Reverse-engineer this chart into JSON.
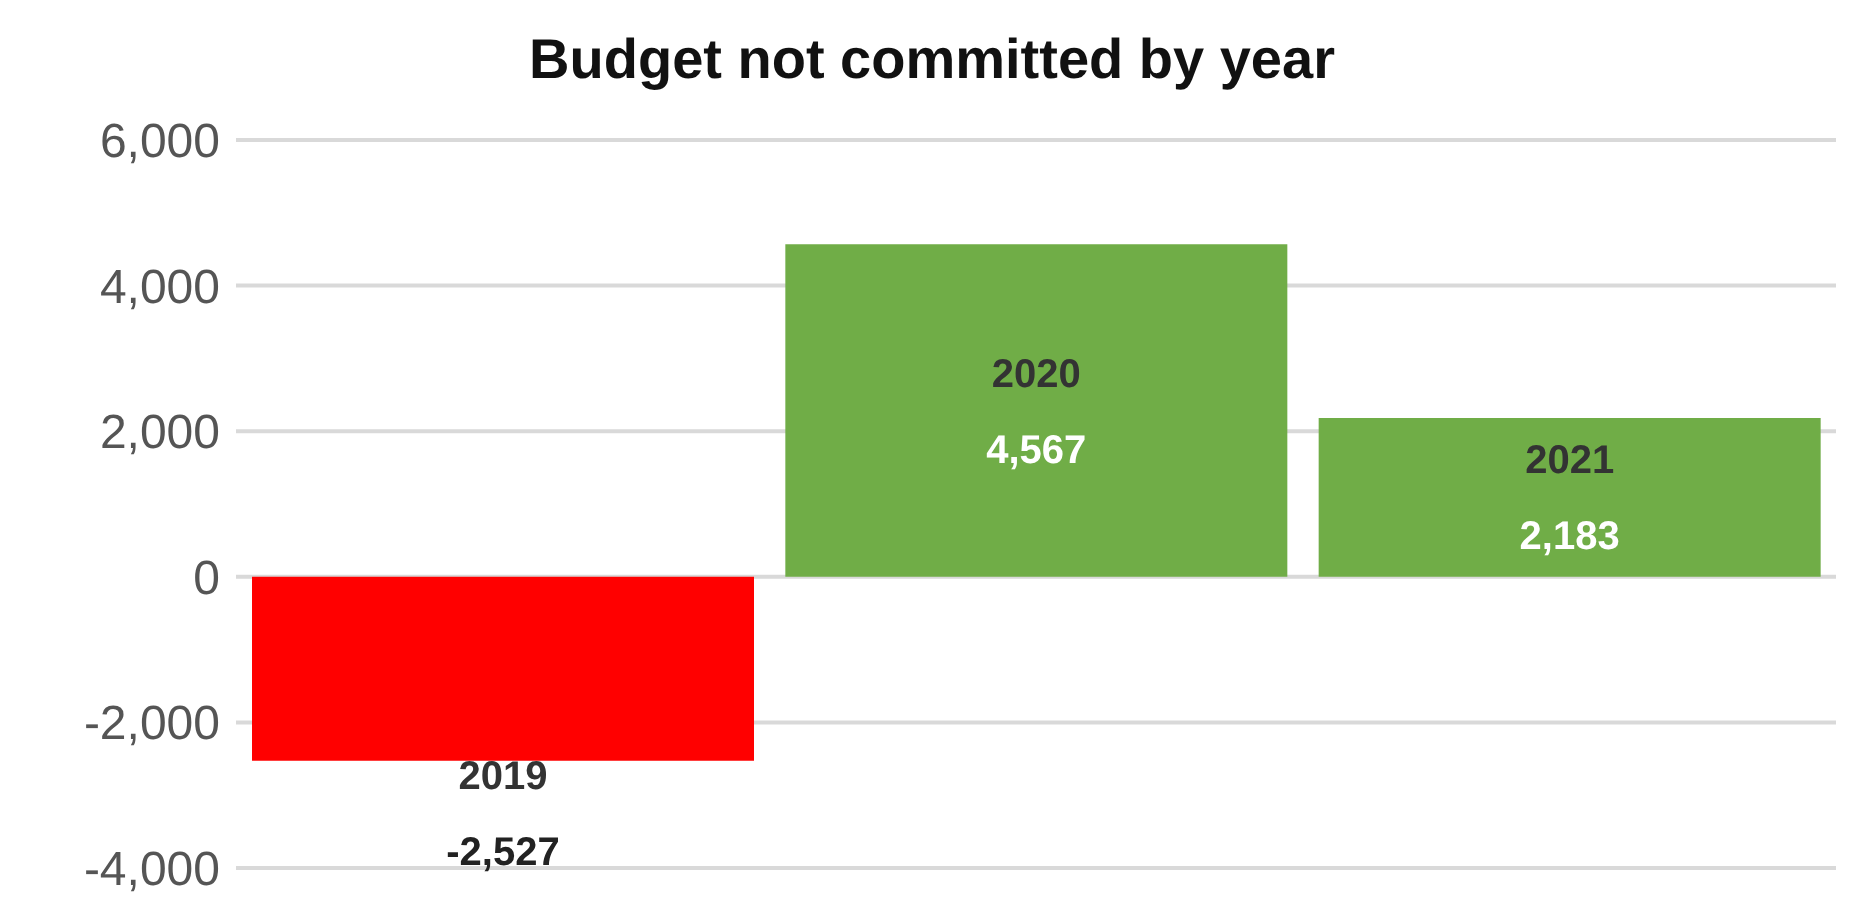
{
  "chart_data": {
    "type": "bar",
    "title": "Budget not committed by year",
    "categories": [
      "2019",
      "2020",
      "2021"
    ],
    "values": [
      -2527,
      4567,
      2183
    ],
    "colors": [
      "#ff0000",
      "#70ad47",
      "#70ad47"
    ],
    "value_labels": [
      "-2,527",
      "4,567",
      "2,183"
    ],
    "ylim": [
      -4000,
      6000
    ],
    "yticks": [
      {
        "value": -4000,
        "label": "-4,000"
      },
      {
        "value": -2000,
        "label": "-2,000"
      },
      0,
      {
        "value": 2000,
        "label": "2,000"
      },
      {
        "value": 4000,
        "label": "4,000"
      },
      {
        "value": 6000,
        "label": "6,000"
      }
    ],
    "grid": "y",
    "tick_labels": "y"
  }
}
